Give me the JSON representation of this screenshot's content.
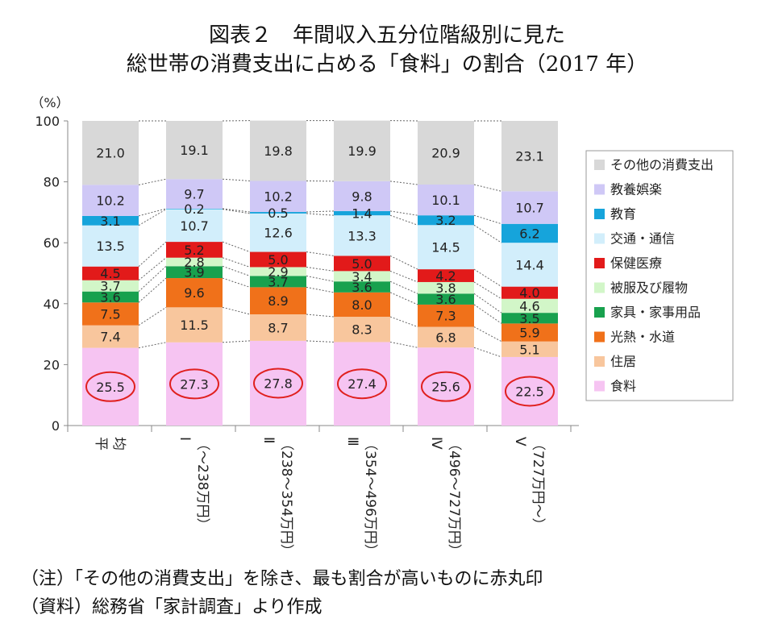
{
  "title": {
    "line1": "図表２　年間収入五分位階級別に見た",
    "line2": "総世帯の消費支出に占める「食料」の割合（2017 年）"
  },
  "notes": {
    "note": "（注）「その他の消費支出」を除き、最も割合が高いものに赤丸印",
    "source": "（資料）総務省「家計調査」より作成"
  },
  "chart_data": {
    "type": "bar",
    "stacked": true,
    "percent_stacked": true,
    "unit_label": "（%）",
    "ylim": [
      0,
      100
    ],
    "yticks": [
      0,
      20,
      40,
      60,
      80,
      100
    ],
    "grid": false,
    "legend_position": "right",
    "categories": [
      [
        "平",
        "均"
      ],
      [
        "Ⅰ",
        "（～238万円）"
      ],
      [
        "Ⅱ",
        "（238～354万円）"
      ],
      [
        "Ⅲ",
        "（354～496万円）"
      ],
      [
        "Ⅳ",
        "（496～727万円）"
      ],
      [
        "Ⅴ",
        "（727万円～）"
      ]
    ],
    "highlighted_series": "食料",
    "highlight_color": "#e0201e",
    "series": [
      {
        "name": "食料",
        "color": "#f6c4f2",
        "values": [
          25.5,
          27.3,
          27.8,
          27.4,
          25.6,
          22.5
        ]
      },
      {
        "name": "住居",
        "color": "#f8c69d",
        "values": [
          7.4,
          11.5,
          8.7,
          8.3,
          6.8,
          5.1
        ]
      },
      {
        "name": "光熱・水道",
        "color": "#f0711a",
        "values": [
          7.5,
          9.6,
          8.9,
          8.0,
          7.3,
          5.9
        ]
      },
      {
        "name": "家具・家事用品",
        "color": "#18a14e",
        "values": [
          3.6,
          3.9,
          3.7,
          3.6,
          3.6,
          3.5
        ]
      },
      {
        "name": "被服及び履物",
        "color": "#d2f6c8",
        "values": [
          3.7,
          2.8,
          2.9,
          3.4,
          3.8,
          4.6
        ]
      },
      {
        "name": "保健医療",
        "color": "#e21a1a",
        "values": [
          4.5,
          5.2,
          5.0,
          5.0,
          4.2,
          4.0
        ]
      },
      {
        "name": "交通・通信",
        "color": "#d2eefb",
        "values": [
          13.5,
          10.7,
          12.6,
          13.3,
          14.5,
          14.4
        ]
      },
      {
        "name": "教育",
        "color": "#16a4db",
        "values": [
          3.1,
          0.2,
          0.5,
          1.4,
          3.2,
          6.2
        ]
      },
      {
        "name": "教養娯楽",
        "color": "#cfc8f6",
        "values": [
          10.2,
          9.7,
          10.2,
          9.8,
          10.1,
          10.7
        ]
      },
      {
        "name": "その他の消費支出",
        "color": "#d8d8d8",
        "values": [
          21.0,
          19.1,
          19.8,
          19.9,
          20.9,
          23.1
        ]
      }
    ]
  }
}
